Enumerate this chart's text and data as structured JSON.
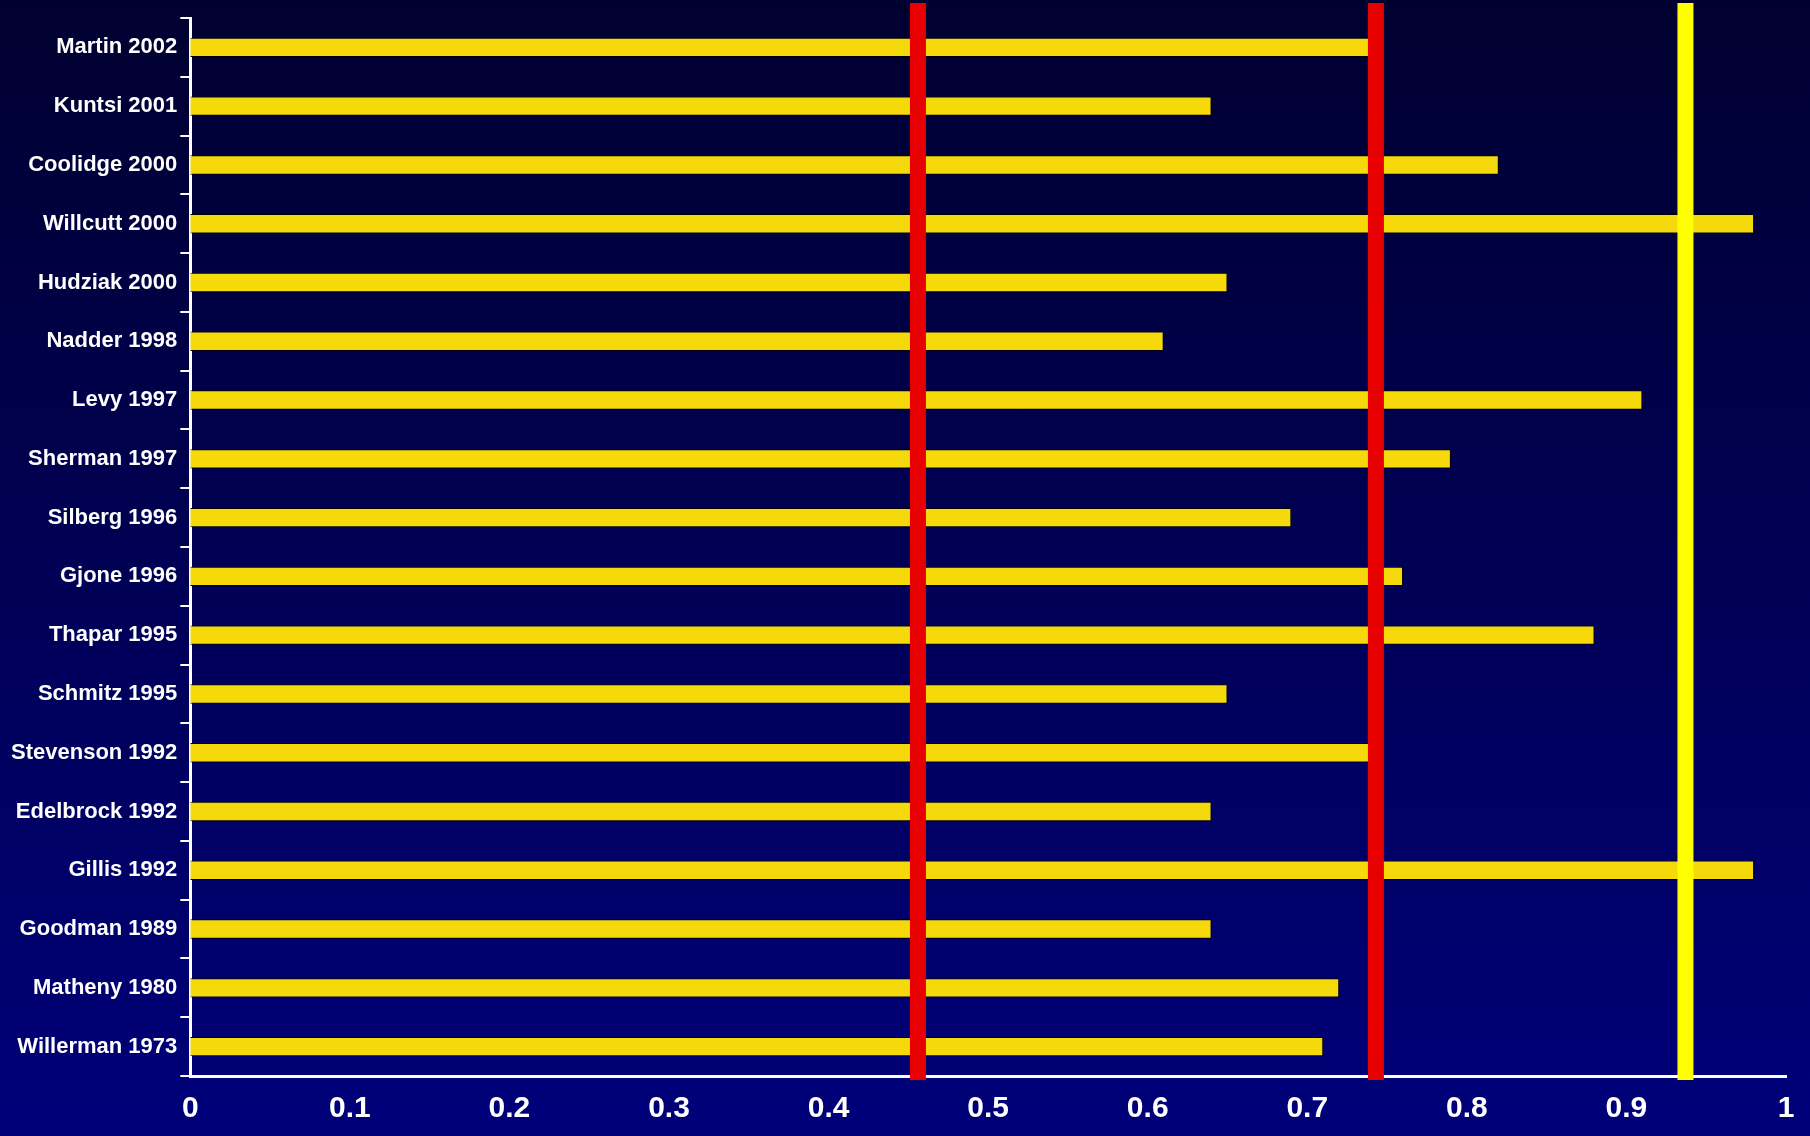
{
  "chart_data": {
    "type": "bar",
    "orientation": "horizontal",
    "categories": [
      "Martin 2002",
      "Kuntsi 2001",
      "Coolidge 2000",
      "Willcutt 2000",
      "Hudziak 2000",
      "Nadder 1998",
      "Levy 1997",
      "Sherman 1997",
      "Silberg 1996",
      "Gjone 1996",
      "Thapar 1995",
      "Schmitz 1995",
      "Stevenson 1992",
      "Edelbrock 1992",
      "Gillis 1992",
      "Goodman 1989",
      "Matheny 1980",
      "Willerman 1973"
    ],
    "values": [
      0.74,
      0.64,
      0.82,
      0.98,
      0.65,
      0.61,
      0.91,
      0.79,
      0.69,
      0.76,
      0.88,
      0.65,
      0.74,
      0.64,
      0.98,
      0.64,
      0.72,
      0.71
    ],
    "color": "#f5d90a",
    "xlim": [
      0,
      1
    ],
    "xticks": [
      0,
      0.1,
      0.2,
      0.3,
      0.4,
      0.5,
      0.6,
      0.7,
      0.8,
      0.9,
      1
    ],
    "grid": false,
    "legend": false,
    "ref_lines": [
      {
        "axis": "x",
        "value": 0.456,
        "color": "#e60000"
      },
      {
        "axis": "x",
        "value": 0.743,
        "color": "#e60000"
      },
      {
        "axis": "x",
        "value": 0.937,
        "color": "#ffff00"
      }
    ]
  }
}
